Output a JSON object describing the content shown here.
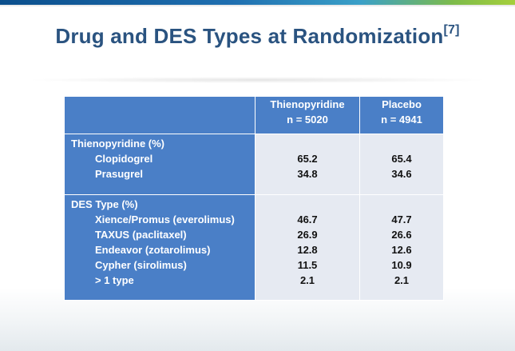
{
  "title": "Drug and DES Types at Randomization",
  "title_ref": "[7]",
  "table": {
    "columns": [
      {
        "name": "Thienopyridine",
        "n": "n = 5020"
      },
      {
        "name": "Placebo",
        "n": "n = 4941"
      }
    ],
    "sections": [
      {
        "heading": "Thienopyridine (%)",
        "rows": [
          {
            "label": "Clopidogrel",
            "values": [
              "65.2",
              "65.4"
            ]
          },
          {
            "label": "Prasugrel",
            "values": [
              "34.8",
              "34.6"
            ]
          }
        ]
      },
      {
        "heading": "DES Type (%)",
        "rows": [
          {
            "label": "Xience/Promus (everolimus)",
            "values": [
              "46.7",
              "47.7"
            ]
          },
          {
            "label": "TAXUS (paclitaxel)",
            "values": [
              "26.9",
              "26.6"
            ]
          },
          {
            "label": "Endeavor (zotarolimus)",
            "values": [
              "12.8",
              "12.6"
            ]
          },
          {
            "label": "Cypher (sirolimus)",
            "values": [
              "11.5",
              "10.9"
            ]
          },
          {
            "label": "> 1 type",
            "values": [
              "2.1",
              "2.1"
            ]
          }
        ]
      }
    ]
  },
  "colors": {
    "title": "#2a5380",
    "header_fill": "#4a7fc7",
    "cell_fill": "#e6eaf2"
  }
}
